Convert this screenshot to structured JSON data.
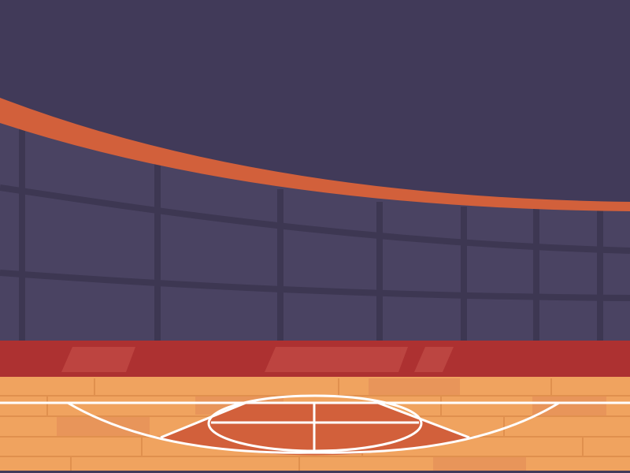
{
  "scene": {
    "subject": "basketball-court-arena",
    "colors": {
      "sky": "#413a59",
      "stands": "#4a4362",
      "stand_lines": "#3d3752",
      "accent_band": "#d2603b",
      "wall": "#ad3131",
      "wall_highlight": "#c04a45",
      "floor": "#f0a35f",
      "floor_plank_line": "#e0904e",
      "floor_patch": "#e8955a",
      "paint": "#d2603b",
      "court_lines": "#ffffff"
    }
  }
}
